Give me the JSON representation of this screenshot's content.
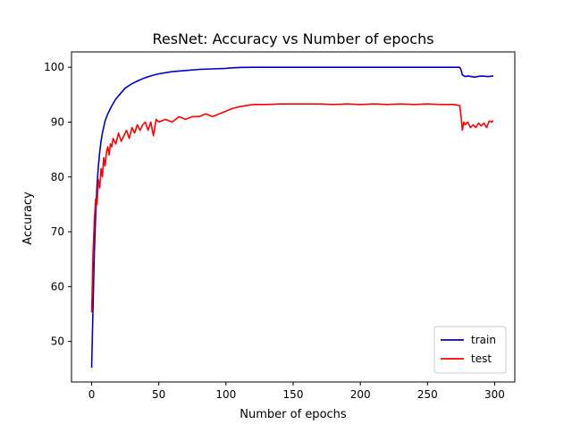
{
  "chart_data": {
    "type": "line",
    "title": "ResNet: Accuracy vs Number of epochs",
    "xlabel": "Number of epochs",
    "ylabel": "Accuracy",
    "xlim": [
      -15,
      315
    ],
    "ylim": [
      42.6,
      102.8
    ],
    "xticks": [
      0,
      50,
      100,
      150,
      200,
      250,
      300
    ],
    "yticks": [
      50,
      60,
      70,
      80,
      90,
      100
    ],
    "grid": false,
    "legend_position": "lower-right",
    "series": [
      {
        "name": "train",
        "color": "#0000cc",
        "x": [
          0,
          1,
          2,
          3,
          4,
          5,
          6,
          7,
          8,
          10,
          12,
          14,
          16,
          18,
          20,
          25,
          30,
          35,
          40,
          45,
          50,
          60,
          70,
          80,
          90,
          100,
          105,
          110,
          120,
          150,
          200,
          250,
          274,
          275,
          276,
          278,
          280,
          285,
          290,
          295,
          299
        ],
        "y": [
          45.2,
          56.0,
          66.0,
          73.0,
          78.5,
          82.0,
          84.5,
          86.5,
          88.0,
          90.2,
          91.5,
          92.5,
          93.4,
          94.2,
          94.8,
          96.2,
          97.0,
          97.6,
          98.1,
          98.5,
          98.8,
          99.2,
          99.4,
          99.6,
          99.7,
          99.8,
          99.9,
          99.95,
          100.0,
          100.0,
          100.0,
          100.0,
          100.0,
          99.5,
          98.6,
          98.3,
          98.4,
          98.2,
          98.4,
          98.3,
          98.4
        ]
      },
      {
        "name": "test",
        "color": "#ff0000",
        "x": [
          0,
          1,
          2,
          3,
          4,
          5,
          6,
          7,
          8,
          9,
          10,
          11,
          12,
          13,
          14,
          15,
          16,
          18,
          20,
          22,
          24,
          26,
          28,
          30,
          32,
          34,
          36,
          38,
          40,
          42,
          44,
          46,
          48,
          50,
          55,
          60,
          65,
          70,
          75,
          80,
          85,
          90,
          95,
          100,
          105,
          110,
          115,
          120,
          130,
          140,
          150,
          160,
          170,
          180,
          190,
          200,
          210,
          220,
          230,
          240,
          250,
          260,
          270,
          274,
          275,
          276,
          277,
          278,
          280,
          282,
          284,
          286,
          288,
          290,
          292,
          294,
          296,
          298,
          299
        ],
        "y": [
          55.3,
          66.0,
          72.0,
          76.0,
          75.0,
          79.5,
          78.0,
          81.5,
          80.0,
          83.5,
          82.0,
          84.5,
          85.5,
          84.0,
          86.0,
          85.5,
          87.0,
          86.0,
          88.0,
          86.5,
          87.5,
          88.5,
          87.0,
          89.0,
          88.0,
          89.5,
          88.5,
          89.5,
          90.0,
          88.5,
          90.0,
          87.5,
          90.5,
          90.0,
          90.5,
          90.0,
          91.0,
          90.5,
          91.0,
          91.0,
          91.5,
          91.0,
          91.5,
          92.0,
          92.5,
          92.8,
          93.0,
          93.2,
          93.2,
          93.3,
          93.3,
          93.3,
          93.3,
          93.2,
          93.3,
          93.2,
          93.3,
          93.2,
          93.3,
          93.2,
          93.3,
          93.2,
          93.2,
          93.0,
          91.0,
          88.5,
          90.0,
          89.5,
          90.0,
          89.0,
          89.5,
          89.0,
          89.8,
          89.3,
          89.8,
          89.0,
          90.2,
          90.0,
          90.3
        ]
      }
    ]
  }
}
